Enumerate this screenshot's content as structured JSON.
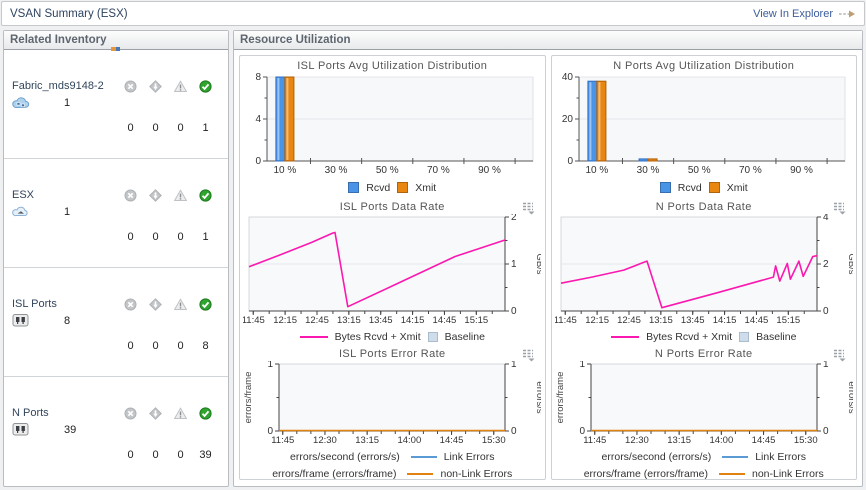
{
  "header": {
    "title": "VSAN Summary (ESX)",
    "action": "View In Explorer"
  },
  "inventory": {
    "title": "Related Inventory",
    "items": [
      {
        "label": "Fabric_mds9148-2",
        "icon": "fabric-icon",
        "count": "1",
        "statuses": [
          {
            "state": "fatal",
            "count": "0"
          },
          {
            "state": "critical",
            "count": "0"
          },
          {
            "state": "warning",
            "count": "0"
          },
          {
            "state": "normal",
            "count": "1"
          }
        ]
      },
      {
        "label": "ESX",
        "icon": "esx-icon",
        "count": "1",
        "statuses": [
          {
            "state": "fatal",
            "count": "0"
          },
          {
            "state": "critical",
            "count": "0"
          },
          {
            "state": "warning",
            "count": "0"
          },
          {
            "state": "normal",
            "count": "1"
          }
        ]
      },
      {
        "label": "ISL Ports",
        "icon": "port-icon",
        "count": "8",
        "statuses": [
          {
            "state": "fatal",
            "count": "0"
          },
          {
            "state": "critical",
            "count": "0"
          },
          {
            "state": "warning",
            "count": "0"
          },
          {
            "state": "normal",
            "count": "8"
          }
        ]
      },
      {
        "label": "N Ports",
        "icon": "port-icon",
        "count": "39",
        "statuses": [
          {
            "state": "fatal",
            "count": "0"
          },
          {
            "state": "critical",
            "count": "0"
          },
          {
            "state": "warning",
            "count": "0"
          },
          {
            "state": "normal",
            "count": "39"
          }
        ]
      }
    ]
  },
  "resource": {
    "title": "Resource Utilization"
  },
  "colors": {
    "rcvd": "#4a94e8",
    "rcvd_border": "#2f6fc2",
    "xmit": "#e8860f",
    "xmit_border": "#b05f08",
    "data_line": "#fb18b0",
    "link_errors": "#5b9bd5",
    "non_link_errors": "#e2820f",
    "normal_green": "#2fa42f"
  },
  "chart_data": [
    {
      "type": "bar",
      "title": "ISL Ports Avg Utilization Distribution",
      "categories": [
        10,
        20,
        30,
        40,
        50,
        60,
        70,
        80,
        90,
        100
      ],
      "x_label_positions": [
        10,
        30,
        50,
        70,
        90
      ],
      "x_tick_labels": [
        "10 %",
        "30 %",
        "50 %",
        "70 %",
        "90 %"
      ],
      "x_cross_ticks": [
        20,
        40,
        60,
        80,
        100
      ],
      "series": [
        {
          "name": "Rcvd",
          "color": "#4a94e8",
          "border": "#2f6fc2",
          "values": [
            8,
            0,
            0,
            0,
            0,
            0,
            0,
            0,
            0,
            0
          ]
        },
        {
          "name": "Xmit",
          "color": "#e8860f",
          "border": "#b05f08",
          "values": [
            8,
            0,
            0,
            0,
            0,
            0,
            0,
            0,
            0,
            0
          ]
        }
      ],
      "ylim": [
        0,
        8
      ],
      "yticks": [
        0,
        4,
        8
      ],
      "y_minor": [
        2,
        6
      ],
      "legend": [
        {
          "label": "Rcvd",
          "swatch": "bar",
          "color": "#4a94e8"
        },
        {
          "label": "Xmit",
          "swatch": "bar",
          "color": "#e8860f"
        }
      ]
    },
    {
      "type": "bar",
      "title": "N Ports Avg Utilization Distribution",
      "categories": [
        10,
        20,
        30,
        40,
        50,
        60,
        70,
        80,
        90,
        100
      ],
      "x_label_positions": [
        10,
        30,
        50,
        70,
        90
      ],
      "x_tick_labels": [
        "10 %",
        "30 %",
        "50 %",
        "70 %",
        "90 %"
      ],
      "x_cross_ticks": [
        20,
        40,
        60,
        80,
        100
      ],
      "series": [
        {
          "name": "Rcvd",
          "color": "#4a94e8",
          "border": "#2f6fc2",
          "values": [
            38,
            0,
            1,
            0,
            0,
            0,
            0,
            0,
            0,
            0
          ]
        },
        {
          "name": "Xmit",
          "color": "#e8860f",
          "border": "#b05f08",
          "values": [
            38,
            0,
            1,
            0,
            0,
            0,
            0,
            0,
            0,
            0
          ]
        }
      ],
      "ylim": [
        0,
        40
      ],
      "yticks": [
        0,
        20,
        40
      ],
      "y_minor": [
        10,
        30
      ],
      "legend": [
        {
          "label": "Rcvd",
          "swatch": "bar",
          "color": "#4a94e8"
        },
        {
          "label": "Xmit",
          "swatch": "bar",
          "color": "#e8860f"
        }
      ]
    },
    {
      "type": "line",
      "title": "ISL Ports Data Rate",
      "ylabel_right": "GB/s",
      "ylim": [
        0,
        2
      ],
      "yticks": [
        0,
        1,
        2
      ],
      "y_minor": [
        0.5,
        1.5
      ],
      "xlim": [
        -4,
        237
      ],
      "x_minor_step": 15,
      "x_tick_minutes": [
        0,
        30,
        60,
        90,
        120,
        150,
        180,
        210
      ],
      "x_tick_labels": [
        "11:45",
        "12:15",
        "12:45",
        "13:15",
        "13:45",
        "14:15",
        "14:45",
        "15:15"
      ],
      "series": [
        {
          "name": "Bytes Rcvd + Xmit",
          "color": "#fb18b0",
          "points": [
            [
              -4,
              0.93
            ],
            [
              25,
              1.18
            ],
            [
              55,
              1.45
            ],
            [
              75,
              1.65
            ],
            [
              77,
              1.66
            ],
            [
              89,
              0.08
            ],
            [
              140,
              0.62
            ],
            [
              190,
              1.15
            ],
            [
              237,
              1.5
            ]
          ]
        }
      ],
      "legend": [
        {
          "label": "Bytes Rcvd + Xmit",
          "swatch": "line",
          "color": "#fb18b0"
        },
        {
          "label": "Baseline",
          "swatch": "square",
          "color": "#cfdcea"
        }
      ],
      "has_menu_icon": true
    },
    {
      "type": "line",
      "title": "N Ports Data Rate",
      "ylabel_right": "GB/s",
      "ylim": [
        0,
        4
      ],
      "yticks": [
        0,
        2,
        4
      ],
      "y_minor": [
        1,
        3
      ],
      "xlim": [
        -4,
        237
      ],
      "x_minor_step": 15,
      "x_tick_minutes": [
        0,
        30,
        60,
        90,
        120,
        150,
        180,
        210
      ],
      "x_tick_labels": [
        "11:45",
        "12:15",
        "12:45",
        "13:15",
        "13:45",
        "14:15",
        "14:45",
        "15:15"
      ],
      "series": [
        {
          "name": "Bytes Rcvd + Xmit",
          "color": "#fb18b0",
          "points": [
            [
              -4,
              1.16
            ],
            [
              25,
              1.42
            ],
            [
              55,
              1.72
            ],
            [
              74,
              2.05
            ],
            [
              77,
              2.1
            ],
            [
              91,
              0.12
            ],
            [
              145,
              0.78
            ],
            [
              196,
              1.42
            ],
            [
              198,
              1.9
            ],
            [
              202,
              1.25
            ],
            [
              209,
              2.0
            ],
            [
              212,
              1.33
            ],
            [
              220,
              2.1
            ],
            [
              224,
              1.45
            ],
            [
              233,
              2.3
            ],
            [
              237,
              2.33
            ]
          ]
        }
      ],
      "legend": [
        {
          "label": "Bytes Rcvd + Xmit",
          "swatch": "line",
          "color": "#fb18b0"
        },
        {
          "label": "Baseline",
          "swatch": "square",
          "color": "#cfdcea"
        }
      ],
      "has_menu_icon": true
    },
    {
      "type": "line",
      "title": "ISL Ports Error Rate",
      "ylabel_left": "errors/frame",
      "ylabel_right": "errors/s",
      "ylim": [
        0,
        1
      ],
      "yticks": [
        0,
        1
      ],
      "y_minor": [
        0.5
      ],
      "xlim": [
        -4,
        237
      ],
      "x_minor_step": 15,
      "x_tick_minutes": [
        0,
        45,
        90,
        135,
        180,
        225
      ],
      "x_tick_labels": [
        "11:45",
        "12:30",
        "13:15",
        "14:00",
        "14:45",
        "15:30"
      ],
      "series": [
        {
          "name": "non-Link Errors",
          "color": "#e2820f",
          "points": [
            [
              -4,
              0
            ],
            [
              237,
              0
            ]
          ]
        }
      ],
      "legend_rows": [
        {
          "prefix": "errors/second (errors/s)",
          "color": "#5b9bd5",
          "label": "Link Errors"
        },
        {
          "prefix": "errors/frame (errors/frame)",
          "color": "#e2820f",
          "label": "non-Link Errors"
        }
      ],
      "has_menu_icon": true
    },
    {
      "type": "line",
      "title": "N Ports Error Rate",
      "ylabel_left": "errors/frame",
      "ylabel_right": "errors/s",
      "ylim": [
        0,
        1
      ],
      "yticks": [
        0,
        1
      ],
      "y_minor": [
        0.5
      ],
      "xlim": [
        -4,
        237
      ],
      "x_minor_step": 15,
      "x_tick_minutes": [
        0,
        45,
        90,
        135,
        180,
        225
      ],
      "x_tick_labels": [
        "11:45",
        "12:30",
        "13:15",
        "14:00",
        "14:45",
        "15:30"
      ],
      "series": [
        {
          "name": "non-Link Errors",
          "color": "#e2820f",
          "points": [
            [
              -4,
              0
            ],
            [
              237,
              0
            ]
          ]
        }
      ],
      "legend_rows": [
        {
          "prefix": "errors/second (errors/s)",
          "color": "#5b9bd5",
          "label": "Link Errors"
        },
        {
          "prefix": "errors/frame (errors/frame)",
          "color": "#e2820f",
          "label": "non-Link Errors"
        }
      ],
      "has_menu_icon": true
    }
  ]
}
